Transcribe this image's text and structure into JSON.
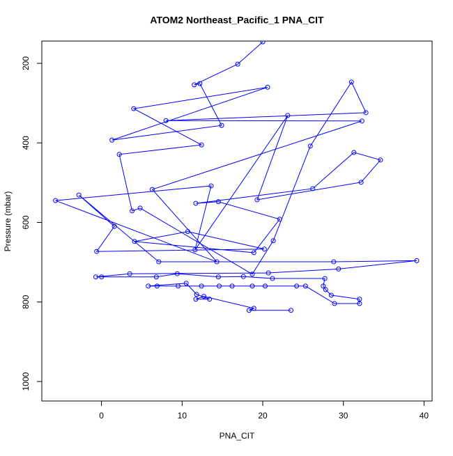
{
  "chart_data": {
    "type": "line",
    "title": "ATOM2 Northeast_Pacific_1 PNA_CIT",
    "x_label": "PNA_CIT",
    "y_label": "Pressure (mbar)",
    "xlim": [
      -7.4,
      41
    ],
    "ylim": [
      1049,
      144
    ],
    "xticks": [
      0,
      10,
      20,
      30,
      40
    ],
    "yticks": [
      200,
      400,
      600,
      800,
      1000
    ],
    "series": [
      {
        "name": "PNA_CIT",
        "color": "#0000ff",
        "x": [
          20.0,
          16.9,
          11.5,
          12.2,
          14.9,
          1.3,
          20.6,
          4.0,
          12.4,
          2.2,
          3.8,
          4.8,
          18.7,
          21.3,
          25.9,
          31.0,
          32.8,
          8.0,
          32.3,
          6.3,
          14.3,
          -5.7,
          13.6,
          11.6,
          23.1,
          19.3,
          32.2,
          34.6,
          31.3,
          26.2,
          11.7,
          14.5,
          22.1,
          18.9,
          4.1,
          10.7,
          20.2,
          -0.6,
          1.6,
          -2.8,
          7.1,
          28.8,
          39.1,
          29.4,
          20.7,
          3.5,
          -0.7,
          0.0,
          6.8,
          9.4,
          14.5,
          17.6,
          21.2,
          27.7,
          27.5,
          27.8,
          28.5,
          32.0,
          32.0,
          28.9,
          25.3,
          24.2,
          20.3,
          18.7,
          16.2,
          14.6,
          12.4,
          9.5,
          6.9,
          5.8,
          10.5,
          11.8,
          13.4,
          11.7,
          12.7,
          18.9,
          18.3,
          23.5
        ],
        "values": [
          146,
          202,
          254,
          251,
          356,
          393,
          260,
          314,
          405,
          429,
          571,
          564,
          730,
          646,
          408,
          247,
          324,
          344,
          345,
          517,
          699,
          545,
          508,
          669,
          331,
          543,
          499,
          443,
          424,
          515,
          552,
          548,
          592,
          676,
          648,
          623,
          667,
          673,
          610,
          531,
          699,
          699,
          696,
          717,
          727,
          729,
          737,
          737,
          737,
          729,
          737,
          736,
          741,
          741,
          760,
          769,
          783,
          793,
          804,
          804,
          760,
          760,
          760,
          760,
          760,
          760,
          760,
          760,
          760,
          760,
          753,
          781,
          793,
          793,
          786,
          816,
          821,
          821
        ]
      }
    ]
  }
}
